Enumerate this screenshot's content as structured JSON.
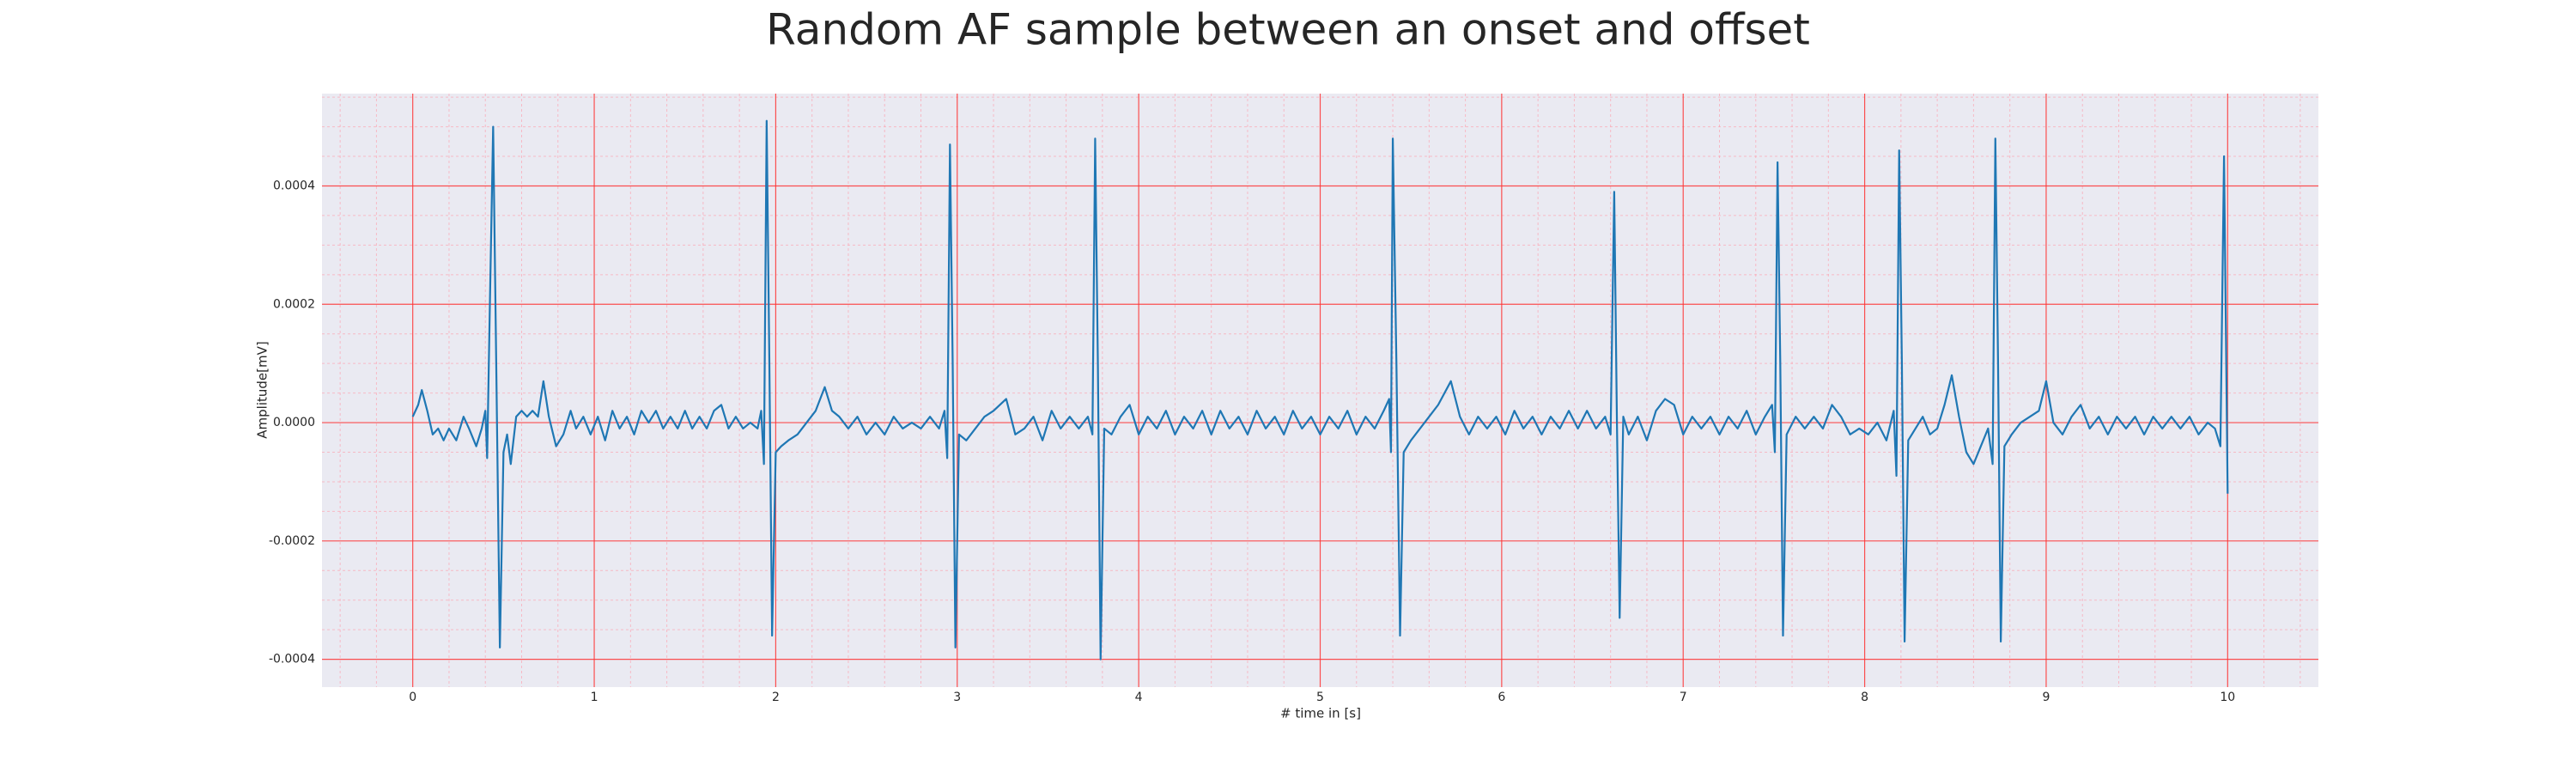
{
  "chart_data": {
    "type": "line",
    "title": "Random AF sample between an onset and offset",
    "xlabel": "# time in [s]",
    "ylabel": "Amplitude[mV]",
    "color": "#1f77b4",
    "grid": true,
    "minor_grid": true,
    "xlim": [
      -0.5,
      10.5
    ],
    "ylim": [
      -0.000447,
      0.000556
    ],
    "xticks": [
      0,
      1,
      2,
      3,
      4,
      5,
      6,
      7,
      8,
      9,
      10
    ],
    "yticks": [
      {
        "value": -0.0004,
        "label": "-0.0004"
      },
      {
        "value": -0.0002,
        "label": "-0.0002"
      },
      {
        "value": 0,
        "label": "0.0000"
      },
      {
        "value": 0.0002,
        "label": "0.0002"
      },
      {
        "value": 0.0004,
        "label": "0.0004"
      }
    ],
    "x": [
      0,
      0.03,
      0.05,
      0.08,
      0.11,
      0.14,
      0.17,
      0.2,
      0.24,
      0.28,
      0.31,
      0.35,
      0.38,
      0.4,
      0.41,
      0.425,
      0.443,
      0.46,
      0.48,
      0.5,
      0.52,
      0.54,
      0.57,
      0.6,
      0.63,
      0.66,
      0.69,
      0.72,
      0.75,
      0.79,
      0.83,
      0.87,
      0.9,
      0.94,
      0.98,
      1.02,
      1.06,
      1.1,
      1.14,
      1.18,
      1.22,
      1.26,
      1.3,
      1.34,
      1.38,
      1.42,
      1.46,
      1.5,
      1.54,
      1.58,
      1.62,
      1.66,
      1.7,
      1.74,
      1.78,
      1.82,
      1.86,
      1.9,
      1.92,
      1.935,
      1.95,
      1.965,
      1.98,
      2.0,
      2.03,
      2.07,
      2.12,
      2.17,
      2.22,
      2.27,
      2.31,
      2.35,
      2.4,
      2.45,
      2.5,
      2.55,
      2.6,
      2.65,
      2.7,
      2.75,
      2.8,
      2.85,
      2.9,
      2.93,
      2.945,
      2.96,
      2.975,
      2.99,
      3.01,
      3.05,
      3.1,
      3.15,
      3.2,
      3.27,
      3.32,
      3.37,
      3.42,
      3.47,
      3.52,
      3.57,
      3.62,
      3.67,
      3.72,
      3.745,
      3.76,
      3.775,
      3.79,
      3.81,
      3.85,
      3.9,
      3.95,
      4.0,
      4.05,
      4.1,
      4.15,
      4.2,
      4.25,
      4.3,
      4.35,
      4.4,
      4.45,
      4.5,
      4.55,
      4.6,
      4.65,
      4.7,
      4.75,
      4.8,
      4.85,
      4.9,
      4.95,
      5.0,
      5.05,
      5.1,
      5.15,
      5.2,
      5.25,
      5.3,
      5.35,
      5.38,
      5.39,
      5.4,
      5.42,
      5.44,
      5.46,
      5.5,
      5.55,
      5.6,
      5.65,
      5.72,
      5.77,
      5.82,
      5.87,
      5.92,
      5.97,
      6.02,
      6.07,
      6.12,
      6.17,
      6.22,
      6.27,
      6.32,
      6.37,
      6.42,
      6.47,
      6.52,
      6.57,
      6.6,
      6.62,
      6.635,
      6.65,
      6.67,
      6.7,
      6.75,
      6.8,
      6.85,
      6.9,
      6.95,
      7.0,
      7.05,
      7.1,
      7.15,
      7.2,
      7.25,
      7.3,
      7.35,
      7.4,
      7.45,
      7.49,
      7.505,
      7.52,
      7.535,
      7.55,
      7.57,
      7.62,
      7.67,
      7.72,
      7.77,
      7.82,
      7.87,
      7.92,
      7.97,
      8.02,
      8.07,
      8.12,
      8.16,
      8.175,
      8.19,
      8.205,
      8.22,
      8.24,
      8.28,
      8.32,
      8.36,
      8.4,
      8.44,
      8.48,
      8.52,
      8.56,
      8.6,
      8.64,
      8.68,
      8.705,
      8.72,
      8.735,
      8.75,
      8.77,
      8.81,
      8.86,
      8.91,
      8.96,
      9.0,
      9.04,
      9.09,
      9.14,
      9.19,
      9.24,
      9.29,
      9.34,
      9.39,
      9.44,
      9.49,
      9.54,
      9.59,
      9.64,
      9.69,
      9.74,
      9.79,
      9.84,
      9.89,
      9.93,
      9.96,
      9.98,
      10.0
    ],
    "values": [
      1e-05,
      3e-05,
      5.5e-05,
      2e-05,
      -2e-05,
      -1e-05,
      -3e-05,
      -1e-05,
      -3e-05,
      1e-05,
      -1e-05,
      -4e-05,
      -1e-05,
      2e-05,
      -6e-05,
      0.0002,
      0.0005,
      0.0001,
      -0.00038,
      -5e-05,
      -2e-05,
      -7e-05,
      1e-05,
      2e-05,
      1e-05,
      2e-05,
      1e-05,
      7e-05,
      1e-05,
      -4e-05,
      -2e-05,
      2e-05,
      -1e-05,
      1e-05,
      -2e-05,
      1e-05,
      -3e-05,
      2e-05,
      -1e-05,
      1e-05,
      -2e-05,
      2e-05,
      0,
      2e-05,
      -1e-05,
      1e-05,
      -1e-05,
      2e-05,
      -1e-05,
      1e-05,
      -1e-05,
      2e-05,
      3e-05,
      -1e-05,
      1e-05,
      -1e-05,
      0,
      -1e-05,
      2e-05,
      -7e-05,
      0.00051,
      0.0001,
      -0.00036,
      -5e-05,
      -4e-05,
      -3e-05,
      -2e-05,
      0,
      2e-05,
      6e-05,
      2e-05,
      1e-05,
      -1e-05,
      1e-05,
      -2e-05,
      0,
      -2e-05,
      1e-05,
      -1e-05,
      0,
      -1e-05,
      1e-05,
      -1e-05,
      2e-05,
      -6e-05,
      0.00047,
      0.0001,
      -0.00038,
      -2e-05,
      -3e-05,
      -1e-05,
      1e-05,
      2e-05,
      4e-05,
      -2e-05,
      -1e-05,
      1e-05,
      -3e-05,
      2e-05,
      -1e-05,
      1e-05,
      -1e-05,
      1e-05,
      -2e-05,
      0.00048,
      0.0001,
      -0.0004,
      -1e-05,
      -2e-05,
      1e-05,
      3e-05,
      -2e-05,
      1e-05,
      -1e-05,
      2e-05,
      -2e-05,
      1e-05,
      -1e-05,
      2e-05,
      -2e-05,
      2e-05,
      -1e-05,
      1e-05,
      -2e-05,
      2e-05,
      -1e-05,
      1e-05,
      -2e-05,
      2e-05,
      -1e-05,
      1e-05,
      -2e-05,
      1e-05,
      -1e-05,
      2e-05,
      -2e-05,
      1e-05,
      -1e-05,
      2e-05,
      4e-05,
      -5e-05,
      0.00048,
      0.0001,
      -0.00036,
      -5e-05,
      -3e-05,
      -1e-05,
      1e-05,
      3e-05,
      7e-05,
      1e-05,
      -2e-05,
      1e-05,
      -1e-05,
      1e-05,
      -2e-05,
      2e-05,
      -1e-05,
      1e-05,
      -2e-05,
      1e-05,
      -1e-05,
      2e-05,
      -1e-05,
      2e-05,
      -1e-05,
      1e-05,
      -2e-05,
      0.00039,
      0,
      -0.00033,
      1e-05,
      -2e-05,
      1e-05,
      -3e-05,
      2e-05,
      4e-05,
      3e-05,
      -2e-05,
      1e-05,
      -1e-05,
      1e-05,
      -2e-05,
      1e-05,
      -1e-05,
      2e-05,
      -2e-05,
      1e-05,
      3e-05,
      -5e-05,
      0.00044,
      0.0001,
      -0.00036,
      -2e-05,
      1e-05,
      -1e-05,
      1e-05,
      -1e-05,
      3e-05,
      1e-05,
      -2e-05,
      -1e-05,
      -2e-05,
      0,
      -3e-05,
      2e-05,
      -9e-05,
      0.00046,
      0.0001,
      -0.00037,
      -3e-05,
      -1e-05,
      1e-05,
      -2e-05,
      -1e-05,
      3e-05,
      8e-05,
      1e-05,
      -5e-05,
      -7e-05,
      -4e-05,
      -1e-05,
      -7e-05,
      0.00048,
      0.0001,
      -0.00037,
      -4e-05,
      -2e-05,
      0,
      1e-05,
      2e-05,
      7e-05,
      0,
      -2e-05,
      1e-05,
      3e-05,
      -1e-05,
      1e-05,
      -2e-05,
      1e-05,
      -1e-05,
      1e-05,
      -2e-05,
      1e-05,
      -1e-05,
      1e-05,
      -1e-05,
      1e-05,
      -2e-05,
      0,
      -1e-05,
      -4e-05,
      0.00045,
      -0.00012
    ]
  }
}
